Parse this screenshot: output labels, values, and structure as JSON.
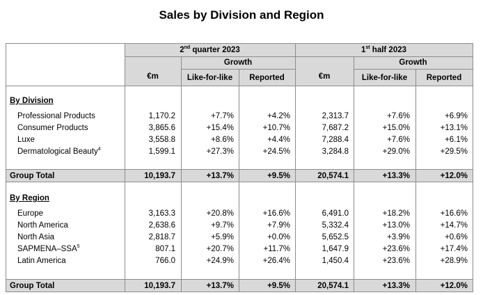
{
  "title": "Sales by Division and Region",
  "headers": {
    "q2": {
      "label": "quarter 2023",
      "prefix": "2",
      "sup": "nd"
    },
    "h1": {
      "label": "half 2023",
      "prefix": "1",
      "sup": "st"
    },
    "growth": "Growth",
    "em": "€m",
    "lfl": "Like-for-like",
    "reported": "Reported"
  },
  "division": {
    "heading": "By Division",
    "rows": [
      {
        "label": "Professional Products",
        "sup": "",
        "q2_em": "1,170.2",
        "q2_lfl": "+7.7%",
        "q2_rep": "+4.2%",
        "h1_em": "2,313.7",
        "h1_lfl": "+7.6%",
        "h1_rep": "+6.9%"
      },
      {
        "label": "Consumer Products",
        "sup": "",
        "q2_em": "3,865.6",
        "q2_lfl": "+15.4%",
        "q2_rep": "+10.7%",
        "h1_em": "7,687.2",
        "h1_lfl": "+15.0%",
        "h1_rep": "+13.1%"
      },
      {
        "label": "Luxe",
        "sup": "",
        "q2_em": "3,558.8",
        "q2_lfl": "+8.6%",
        "q2_rep": "+4.4%",
        "h1_em": "7,288.4",
        "h1_lfl": "+7.6%",
        "h1_rep": "+6.1%"
      },
      {
        "label": "Dermatological Beauty",
        "sup": "4",
        "q2_em": "1,599.1",
        "q2_lfl": "+27.3%",
        "q2_rep": "+24.5%",
        "h1_em": "3,284.8",
        "h1_lfl": "+29.0%",
        "h1_rep": "+29.5%"
      }
    ],
    "total": {
      "label": "Group Total",
      "q2_em": "10,193.7",
      "q2_lfl": "+13.7%",
      "q2_rep": "+9.5%",
      "h1_em": "20,574.1",
      "h1_lfl": "+13.3%",
      "h1_rep": "+12.0%"
    }
  },
  "region": {
    "heading": "By Region",
    "rows": [
      {
        "label": "Europe",
        "sup": "",
        "q2_em": "3,163.3",
        "q2_lfl": "+20.8%",
        "q2_rep": "+16.6%",
        "h1_em": "6,491.0",
        "h1_lfl": "+18.2%",
        "h1_rep": "+16.6%"
      },
      {
        "label": "North America",
        "sup": "",
        "q2_em": "2,638.6",
        "q2_lfl": "+9.7%",
        "q2_rep": "+7.9%",
        "h1_em": "5,332.4",
        "h1_lfl": "+13.0%",
        "h1_rep": "+14.7%"
      },
      {
        "label": "North Asia",
        "sup": "",
        "q2_em": "2,818.7",
        "q2_lfl": "+5.9%",
        "q2_rep": "+0.0%",
        "h1_em": "5,652.5",
        "h1_lfl": "+3.9%",
        "h1_rep": "+0.6%"
      },
      {
        "label": "SAPMENA–SSA",
        "sup": "5",
        "q2_em": "807.1",
        "q2_lfl": "+20.7%",
        "q2_rep": "+11.7%",
        "h1_em": "1,647.9",
        "h1_lfl": "+23.6%",
        "h1_rep": "+17.4%"
      },
      {
        "label": "Latin America",
        "sup": "",
        "q2_em": "766.0",
        "q2_lfl": "+24.9%",
        "q2_rep": "+26.4%",
        "h1_em": "1,450.4",
        "h1_lfl": "+23.6%",
        "h1_rep": "+28.9%"
      }
    ],
    "total": {
      "label": "Group Total",
      "q2_em": "10,193.7",
      "q2_lfl": "+13.7%",
      "q2_rep": "+9.5%",
      "h1_em": "20,574.1",
      "h1_lfl": "+13.3%",
      "h1_rep": "+12.0%"
    }
  }
}
